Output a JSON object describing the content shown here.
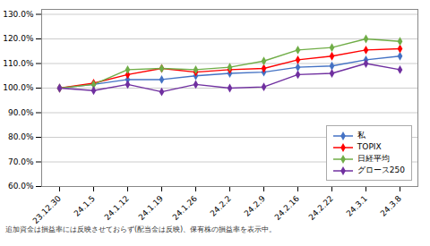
{
  "chart_data": {
    "type": "line",
    "categories": [
      "23.12.30",
      "24.1.5",
      "24.1.12",
      "24.1.19",
      "24.1.26",
      "24.2.2",
      "24.2.9",
      "24.2.16",
      "24.2.22",
      "24.3.1",
      "24.3.8"
    ],
    "series": [
      {
        "name": "私",
        "color": "#4472C4",
        "marker": "diamond",
        "values": [
          100.0,
          101.5,
          103.5,
          103.5,
          105.0,
          106.0,
          106.5,
          108.5,
          109.0,
          111.5,
          113.0
        ]
      },
      {
        "name": "TOPIX",
        "color": "#FF0000",
        "marker": "diamond",
        "values": [
          100.0,
          102.0,
          105.5,
          108.0,
          106.5,
          107.5,
          108.0,
          111.5,
          113.0,
          115.5,
          116.0
        ]
      },
      {
        "name": "日経平均",
        "color": "#70AD47",
        "marker": "diamond",
        "values": [
          100.0,
          101.5,
          107.5,
          108.0,
          107.5,
          108.5,
          111.0,
          115.5,
          116.5,
          120.0,
          119.0
        ]
      },
      {
        "name": "グロース250",
        "color": "#7030A0",
        "marker": "diamond",
        "values": [
          100.0,
          99.0,
          101.5,
          98.5,
          101.5,
          100.0,
          100.5,
          105.5,
          106.0,
          110.0,
          107.5
        ]
      }
    ],
    "ylim": [
      60.0,
      132.0
    ],
    "yticks": [
      {
        "value": 60.0,
        "label": "60.0%"
      },
      {
        "value": 70.0,
        "label": "70.0%"
      },
      {
        "value": 80.0,
        "label": "80.0%"
      },
      {
        "value": 90.0,
        "label": "90.0%"
      },
      {
        "value": 100.0,
        "label": "100.0%"
      },
      {
        "value": 110.0,
        "label": "110.0%"
      },
      {
        "value": 120.0,
        "label": "120.0%"
      },
      {
        "value": 130.0,
        "label": "130.0%"
      }
    ],
    "grid": true,
    "legend": "right",
    "footnote": "追加資金は損益率には反映させておらず(配当金は反映)、保有株の損益率を表示中。"
  }
}
